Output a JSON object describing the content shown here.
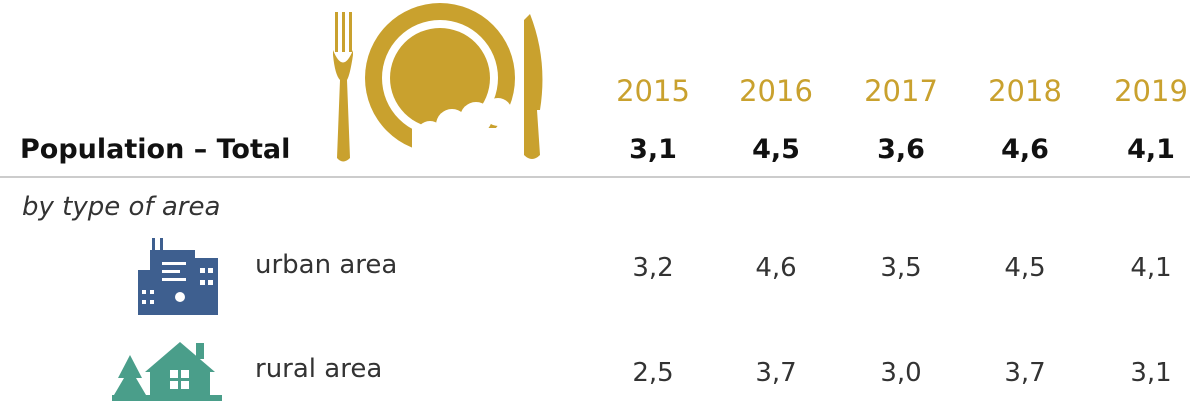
{
  "table": {
    "header": {
      "label": "Population – Total",
      "years": [
        "2015",
        "2016",
        "2017",
        "2018",
        "2019"
      ],
      "values": [
        "3,1",
        "4,5",
        "3,6",
        "4,6",
        "4,1"
      ]
    },
    "section": "by type of area",
    "rows": [
      {
        "label": "urban area",
        "values": [
          "3,2",
          "4,6",
          "3,5",
          "4,5",
          "4,1"
        ]
      },
      {
        "label": "rural area",
        "values": [
          "2,5",
          "3,7",
          "3,0",
          "3,7",
          "3,1"
        ]
      }
    ]
  }
}
